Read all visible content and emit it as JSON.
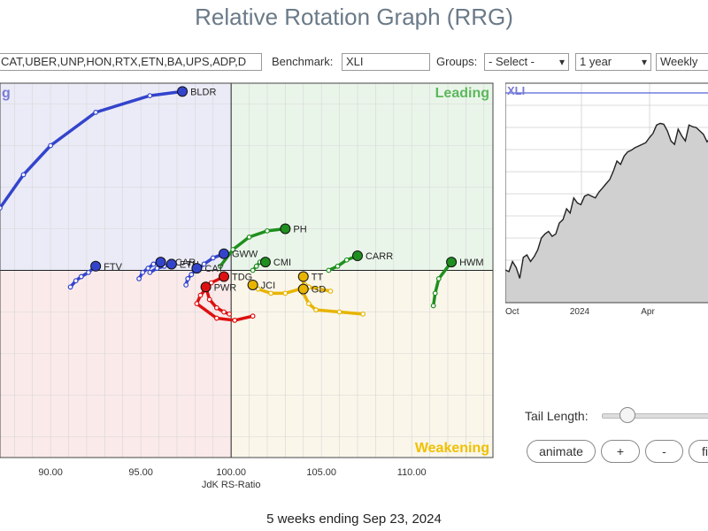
{
  "title": "Relative Rotation Graph (RRG)",
  "controls": {
    "symbols_value": "CAT,UBER,UNP,HON,RTX,ETN,BA,UPS,ADP,D",
    "benchmark_label": "Benchmark:",
    "benchmark_value": "XLI",
    "groups_label": "Groups:",
    "groups_value": "- Select -",
    "period_value": "1 year",
    "frequency_value": "Weekly"
  },
  "quadrants": {
    "leading": "Leading",
    "weakening": "Weakening",
    "improving_partial": "g"
  },
  "colors": {
    "leading_bg": "#eaf5ea",
    "weakening_bg": "#faf6ea",
    "lagging_bg": "#fbeaea",
    "improving_bg": "#ebebf7",
    "leading_text": "#5cb85c",
    "weakening_text": "#f0c000",
    "improving_text": "#7b7bd6",
    "blue": "#3344cc",
    "green": "#1f8f1f",
    "yellow": "#e8b400",
    "red": "#dd1111"
  },
  "chart_data": {
    "type": "scatter",
    "xlabel": "JdK RS-Ratio",
    "ylabel": "",
    "xlim": [
      87.2,
      114.5
    ],
    "ylim": [
      95.5,
      104.5
    ],
    "x_ticks": [
      90,
      95,
      100,
      105,
      110
    ],
    "x_tick_labels": [
      "90.00",
      "95.00",
      "100.00",
      "105.00",
      "110.00"
    ],
    "center": [
      100,
      100
    ],
    "series": [
      {
        "name": "BLDR",
        "color": "blue",
        "points": [
          [
            87.2,
            101.5
          ],
          [
            88.5,
            102.3
          ],
          [
            90.0,
            103.0
          ],
          [
            92.5,
            103.8
          ],
          [
            95.5,
            104.2
          ],
          [
            97.3,
            104.3
          ]
        ]
      },
      {
        "name": "FTV",
        "color": "blue",
        "points": [
          [
            91.1,
            99.6
          ],
          [
            91.4,
            99.75
          ],
          [
            91.7,
            99.85
          ],
          [
            92.1,
            99.95
          ],
          [
            92.5,
            100.1
          ]
        ]
      },
      {
        "name": "GWW",
        "color": "blue",
        "points": [
          [
            98.1,
            100.0
          ],
          [
            98.5,
            100.15
          ],
          [
            99.0,
            100.3
          ],
          [
            99.6,
            100.4
          ]
        ]
      },
      {
        "name": "PCAR",
        "color": "blue",
        "points": [
          [
            94.9,
            99.8
          ],
          [
            95.1,
            99.95
          ],
          [
            95.4,
            100.05
          ],
          [
            95.7,
            100.15
          ],
          [
            96.1,
            100.2
          ]
        ]
      },
      {
        "name": "ETN",
        "color": "blue",
        "points": [
          [
            95.5,
            99.95
          ],
          [
            95.9,
            100.05
          ],
          [
            96.3,
            100.1
          ],
          [
            96.7,
            100.15
          ]
        ]
      },
      {
        "name": "CAT",
        "color": "blue",
        "points": [
          [
            97.5,
            99.65
          ],
          [
            97.6,
            99.8
          ],
          [
            97.8,
            99.9
          ],
          [
            98.1,
            100.05
          ]
        ]
      },
      {
        "name": "PH",
        "color": "green",
        "points": [
          [
            99.4,
            100.1
          ],
          [
            100.1,
            100.5
          ],
          [
            101.0,
            100.8
          ],
          [
            102.0,
            100.95
          ],
          [
            103.0,
            101.0
          ]
        ]
      },
      {
        "name": "CMI",
        "color": "green",
        "points": [
          [
            101.2,
            100.0
          ],
          [
            101.4,
            100.1
          ],
          [
            101.6,
            100.2
          ],
          [
            101.9,
            100.2
          ]
        ]
      },
      {
        "name": "CARR",
        "color": "green",
        "points": [
          [
            105.4,
            100.0
          ],
          [
            105.9,
            100.1
          ],
          [
            106.4,
            100.25
          ],
          [
            107.0,
            100.35
          ]
        ]
      },
      {
        "name": "HWM",
        "color": "green",
        "points": [
          [
            111.2,
            99.15
          ],
          [
            111.3,
            99.45
          ],
          [
            111.5,
            99.8
          ],
          [
            112.2,
            100.2
          ]
        ]
      },
      {
        "name": "TDG",
        "color": "red",
        "points": [
          [
            101.2,
            98.9
          ],
          [
            100.2,
            98.8
          ],
          [
            99.2,
            98.85
          ],
          [
            98.1,
            99.2
          ],
          [
            98.3,
            99.4
          ],
          [
            98.9,
            99.7
          ],
          [
            99.6,
            99.85
          ]
        ]
      },
      {
        "name": "PWR",
        "color": "red",
        "points": [
          [
            99.9,
            98.95
          ],
          [
            99.6,
            99.0
          ],
          [
            99.2,
            99.1
          ],
          [
            98.8,
            99.3
          ],
          [
            98.6,
            99.6
          ]
        ]
      },
      {
        "name": "JCI",
        "color": "yellow",
        "points": [
          [
            103.8,
            99.55
          ],
          [
            103.0,
            99.45
          ],
          [
            102.2,
            99.45
          ],
          [
            101.5,
            99.55
          ],
          [
            101.2,
            99.65
          ]
        ]
      },
      {
        "name": "TT",
        "color": "yellow",
        "points": [
          [
            107.3,
            98.95
          ],
          [
            106.0,
            99.0
          ],
          [
            104.7,
            99.05
          ],
          [
            104.3,
            99.2
          ],
          [
            104.0,
            99.45
          ],
          [
            104.0,
            99.85
          ]
        ]
      },
      {
        "name": "GD",
        "color": "yellow",
        "points": [
          [
            105.5,
            99.5
          ],
          [
            104.9,
            99.55
          ],
          [
            104.3,
            99.6
          ],
          [
            104.1,
            99.65
          ],
          [
            104.0,
            99.55
          ]
        ]
      }
    ],
    "mini_chart": {
      "type": "area",
      "title": "XLI",
      "x_tick_labels": [
        "Oct",
        "2024",
        "Apr"
      ],
      "values": [
        0.12,
        0.1,
        0.22,
        0.15,
        0.02,
        0.27,
        0.3,
        0.22,
        0.28,
        0.36,
        0.5,
        0.55,
        0.58,
        0.52,
        0.55,
        0.68,
        0.72,
        0.85,
        0.8,
        0.98,
        0.92,
        0.9,
        1.0,
        1.02,
        1.0,
        0.98,
        1.05,
        1.1,
        1.15,
        1.2,
        1.3,
        1.42,
        1.38,
        1.48,
        1.53,
        1.55,
        1.58,
        1.6,
        1.62,
        1.64,
        1.7,
        1.75,
        1.85,
        1.87,
        1.86,
        1.78,
        1.66,
        1.62,
        1.8,
        1.72,
        1.66,
        1.85,
        1.83,
        1.82,
        1.78,
        1.74,
        1.65,
        1.7,
        1.75
      ]
    }
  },
  "tail": {
    "label": "Tail Length:"
  },
  "buttons": {
    "animate": "animate",
    "plus": "+",
    "minus": "-",
    "partial": "fi"
  },
  "footer": "5 weeks ending Sep 23, 2024"
}
